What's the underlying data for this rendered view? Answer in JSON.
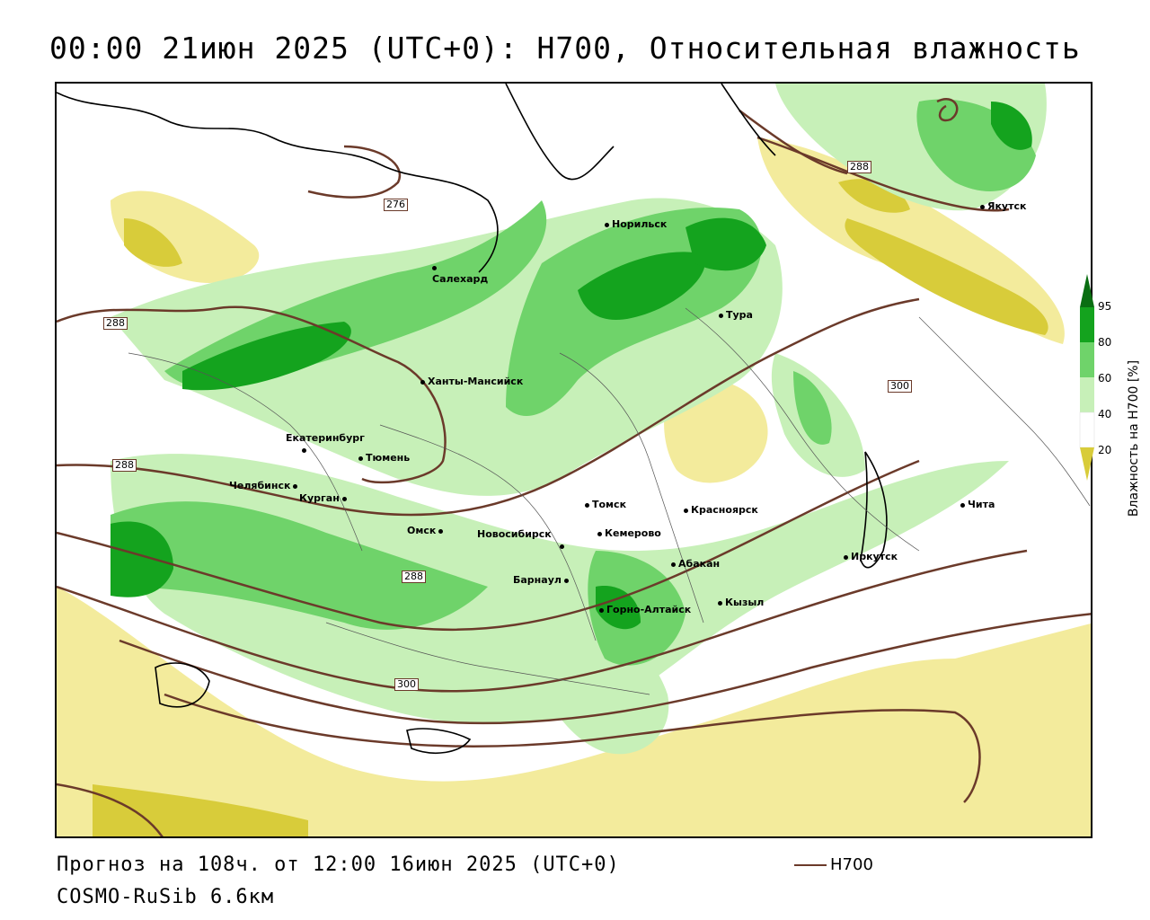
{
  "title": "00:00 21июн 2025 (UTC+0): H700, Относительная влажность",
  "footer": {
    "forecast": "Прогноз на 108ч. от 12:00 16июн 2025 (UTC+0)",
    "model": "COSMO-RuSib 6.6км"
  },
  "legend": {
    "line_label": "H700",
    "line_color": "#6b3a2a"
  },
  "colorbar": {
    "title": "Влажность на H700 [%]",
    "ticks": [
      "95",
      "80",
      "60",
      "40",
      "20"
    ],
    "colors": {
      "yellow_dark": "#d8cc3a",
      "yellow_light": "#f3eb9c",
      "white": "#ffffff",
      "green_light": "#c7f0b8",
      "green_mid": "#6fd36a",
      "green_dark": "#14a31e",
      "green_darkest": "#0a6e12"
    }
  },
  "contour_labels": [
    "276",
    "288",
    "288",
    "288",
    "288",
    "300",
    "300"
  ],
  "cities": [
    {
      "name": "Норильск"
    },
    {
      "name": "Салехард"
    },
    {
      "name": "Тура"
    },
    {
      "name": "Якутск"
    },
    {
      "name": "Ханты-Мансийск"
    },
    {
      "name": "Екатеринбург"
    },
    {
      "name": "Тюмень"
    },
    {
      "name": "Челябинск"
    },
    {
      "name": "Курган"
    },
    {
      "name": "Омск"
    },
    {
      "name": "Новосибирск"
    },
    {
      "name": "Томск"
    },
    {
      "name": "Кемерово"
    },
    {
      "name": "Красноярск"
    },
    {
      "name": "Барнаул"
    },
    {
      "name": "Абакан"
    },
    {
      "name": "Горно-Алтайск"
    },
    {
      "name": "Кызыл"
    },
    {
      "name": "Иркутск"
    },
    {
      "name": "Чита"
    }
  ]
}
